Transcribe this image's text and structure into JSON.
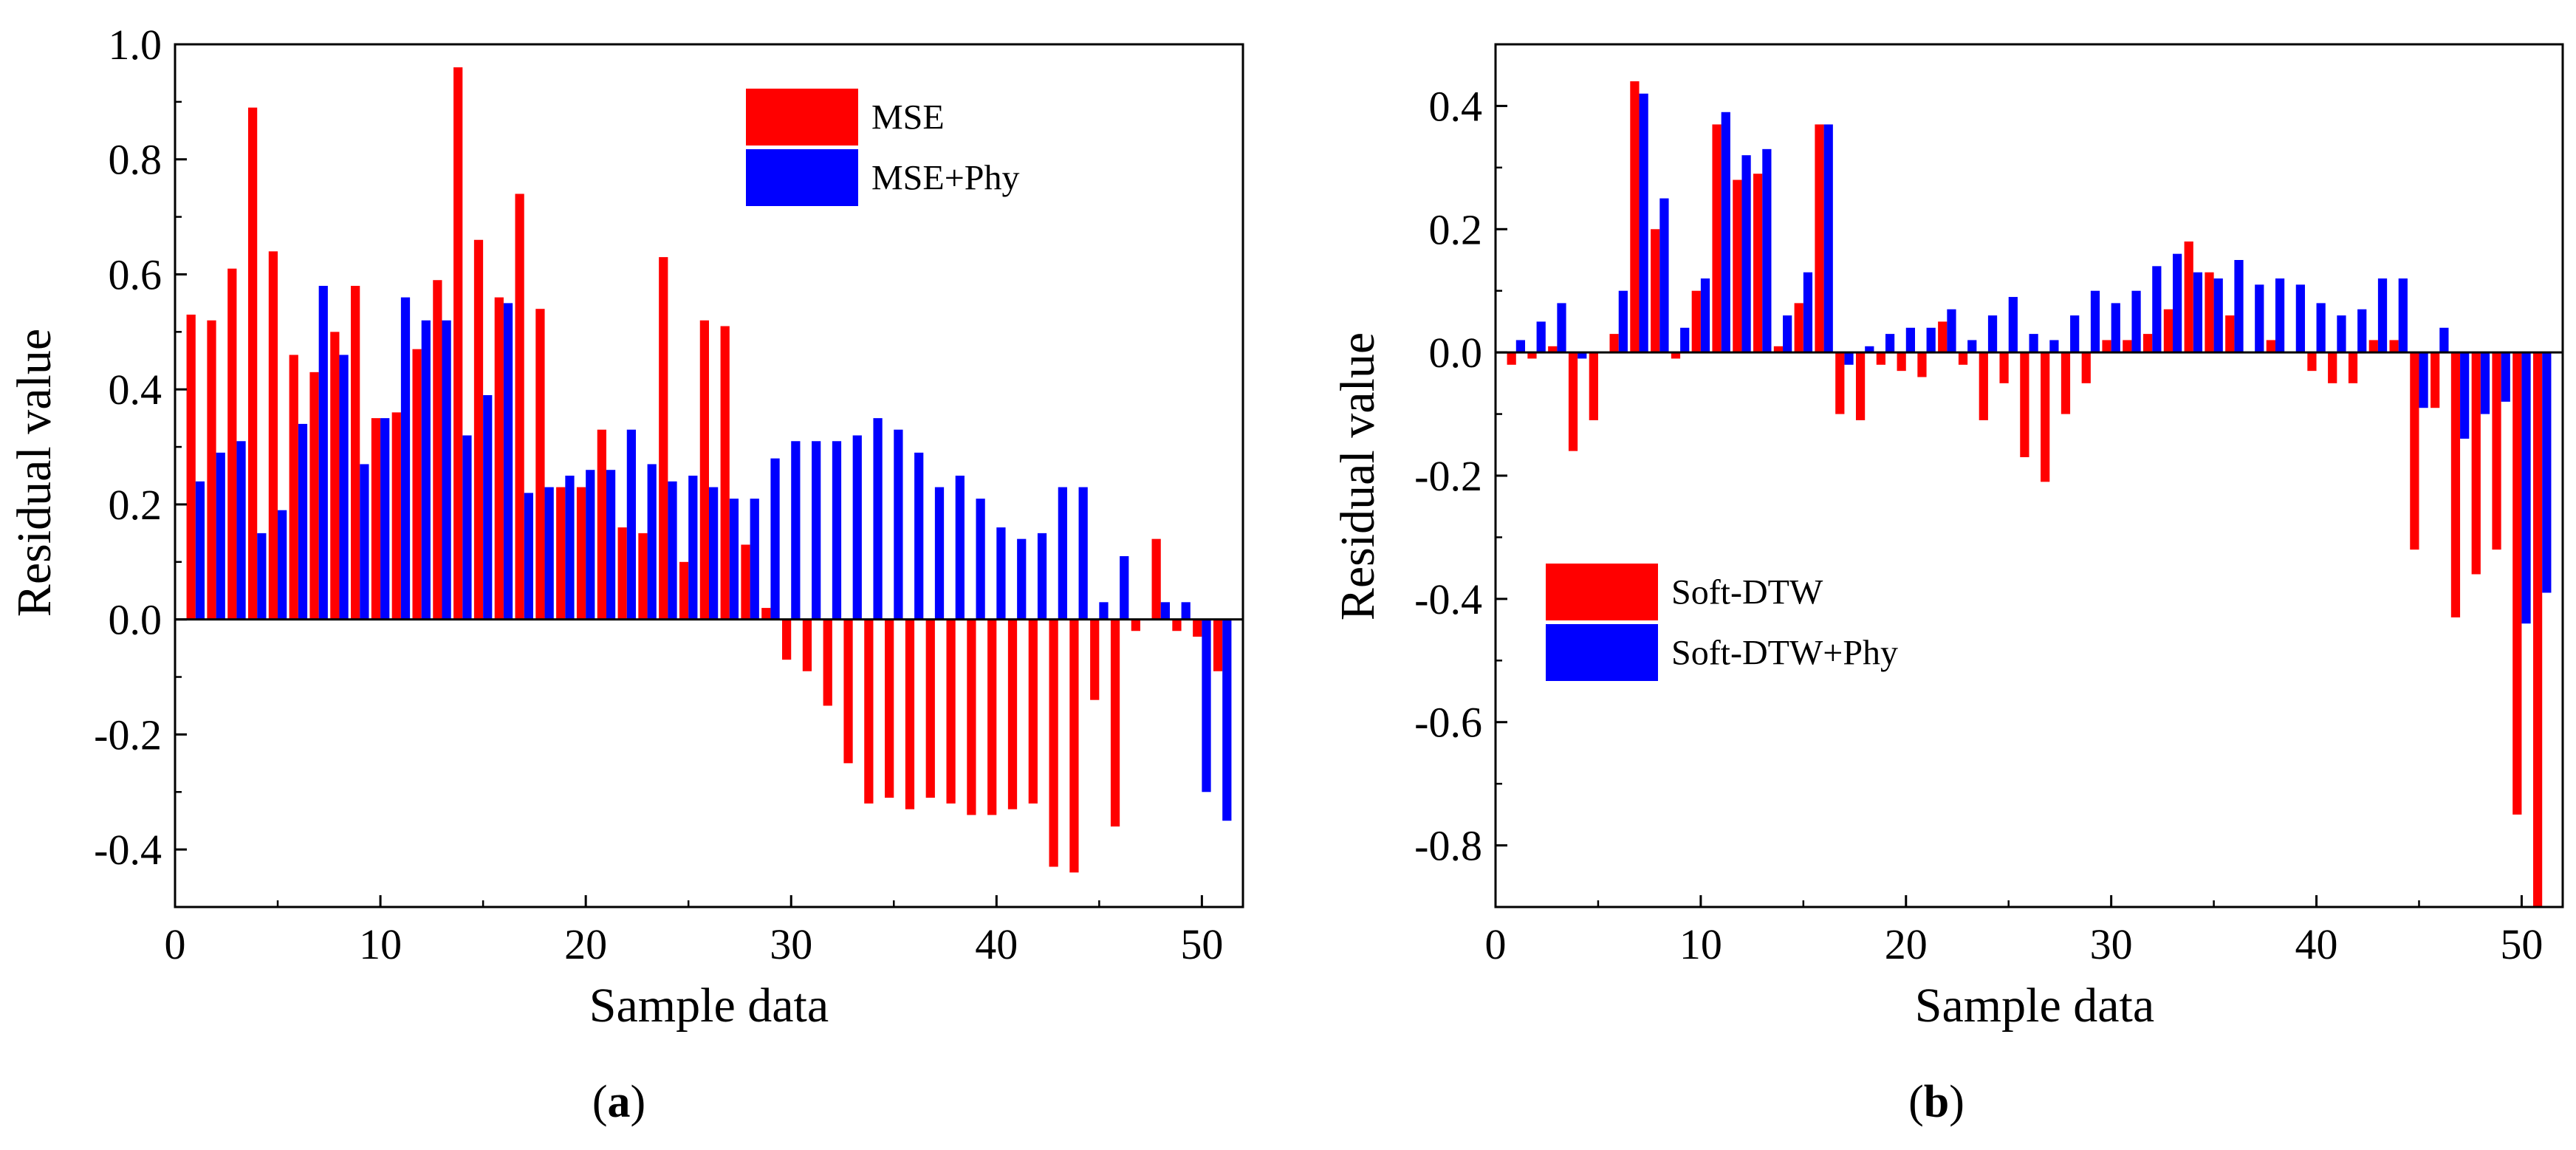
{
  "colors": {
    "series_1": "#ff0000",
    "series_2": "#0000ff",
    "axes": "#000000"
  },
  "chart_data": [
    {
      "type": "bar",
      "caption_letter": "a",
      "xlabel": "Sample data",
      "ylabel": "Residual value",
      "xlim": [
        0,
        52
      ],
      "ylim": [
        -0.5,
        1.0
      ],
      "xticks": [
        0,
        10,
        20,
        30,
        40,
        50
      ],
      "yticks": [
        -0.4,
        -0.2,
        0.0,
        0.2,
        0.4,
        0.6,
        0.8,
        1.0
      ],
      "ytick_labels": [
        "-0.4",
        "-0.2",
        "0.0",
        "0.2",
        "0.4",
        "0.6",
        "0.8",
        "1.0"
      ],
      "grid": false,
      "legend_position": "top-right",
      "x": [
        1,
        2,
        3,
        4,
        5,
        6,
        7,
        8,
        9,
        10,
        11,
        12,
        13,
        14,
        15,
        16,
        17,
        18,
        19,
        20,
        21,
        22,
        23,
        24,
        25,
        26,
        27,
        28,
        29,
        30,
        31,
        32,
        33,
        34,
        35,
        36,
        37,
        38,
        39,
        40,
        41,
        42,
        43,
        44,
        45,
        46,
        47,
        48,
        49,
        50,
        51
      ],
      "series": [
        {
          "name": "MSE",
          "values": [
            0.53,
            0.52,
            0.61,
            0.89,
            0.64,
            0.46,
            0.43,
            0.5,
            0.58,
            0.35,
            0.36,
            0.47,
            0.59,
            0.96,
            0.66,
            0.56,
            0.74,
            0.54,
            0.23,
            0.23,
            0.33,
            0.16,
            0.15,
            0.63,
            0.1,
            0.52,
            0.51,
            0.13,
            0.02,
            -0.07,
            -0.09,
            -0.15,
            -0.25,
            -0.32,
            -0.31,
            -0.33,
            -0.31,
            -0.32,
            -0.34,
            -0.34,
            -0.33,
            -0.32,
            -0.43,
            -0.44,
            -0.14,
            -0.36,
            -0.02,
            0.14,
            -0.02,
            -0.03,
            -0.09
          ]
        },
        {
          "name": "MSE+Phy",
          "values": [
            0.24,
            0.29,
            0.31,
            0.15,
            0.19,
            0.34,
            0.58,
            0.46,
            0.27,
            0.35,
            0.56,
            0.52,
            0.52,
            0.32,
            0.39,
            0.55,
            0.22,
            0.23,
            0.25,
            0.26,
            0.26,
            0.33,
            0.27,
            0.24,
            0.25,
            0.23,
            0.21,
            0.21,
            0.28,
            0.31,
            0.31,
            0.31,
            0.32,
            0.35,
            0.33,
            0.29,
            0.23,
            0.25,
            0.21,
            0.16,
            0.14,
            0.15,
            0.23,
            0.23,
            0.03,
            0.11,
            0.0,
            0.03,
            0.03,
            -0.3,
            -0.35
          ]
        }
      ]
    },
    {
      "type": "bar",
      "caption_letter": "b",
      "xlabel": "Sample data",
      "ylabel": "Residual value",
      "xlim": [
        0,
        52
      ],
      "ylim": [
        -0.9,
        0.5
      ],
      "xticks": [
        0,
        10,
        20,
        30,
        40,
        50
      ],
      "yticks": [
        -0.8,
        -0.6,
        -0.4,
        -0.2,
        0.0,
        0.2,
        0.4
      ],
      "ytick_labels": [
        "-0.8",
        "-0.6",
        "-0.4",
        "-0.2",
        "0.0",
        "0.2",
        "0.4"
      ],
      "grid": false,
      "legend_position": "center-left",
      "x": [
        1,
        2,
        3,
        4,
        5,
        6,
        7,
        8,
        9,
        10,
        11,
        12,
        13,
        14,
        15,
        16,
        17,
        18,
        19,
        20,
        21,
        22,
        23,
        24,
        25,
        26,
        27,
        28,
        29,
        30,
        31,
        32,
        33,
        34,
        35,
        36,
        37,
        38,
        39,
        40,
        41,
        42,
        43,
        44,
        45,
        46,
        47,
        48,
        49,
        50,
        51
      ],
      "series": [
        {
          "name": "Soft-DTW",
          "values": [
            -0.02,
            -0.01,
            0.01,
            -0.16,
            -0.11,
            0.03,
            0.44,
            0.2,
            -0.01,
            0.1,
            0.37,
            0.28,
            0.29,
            0.01,
            0.08,
            0.37,
            -0.1,
            -0.11,
            -0.02,
            -0.03,
            -0.04,
            0.05,
            -0.02,
            -0.11,
            -0.05,
            -0.17,
            -0.21,
            -0.1,
            -0.05,
            0.02,
            0.02,
            0.03,
            0.07,
            0.18,
            0.13,
            0.06,
            0.0,
            0.02,
            0.0,
            -0.03,
            -0.05,
            -0.05,
            0.02,
            0.02,
            -0.32,
            -0.09,
            -0.43,
            -0.36,
            -0.32,
            -0.75,
            -0.9
          ]
        },
        {
          "name": "Soft-DTW+Phy",
          "values": [
            0.02,
            0.05,
            0.08,
            -0.01,
            0.0,
            0.1,
            0.42,
            0.25,
            0.04,
            0.12,
            0.39,
            0.32,
            0.33,
            0.06,
            0.13,
            0.37,
            -0.02,
            0.01,
            0.03,
            0.04,
            0.04,
            0.07,
            0.02,
            0.06,
            0.09,
            0.03,
            0.02,
            0.06,
            0.1,
            0.08,
            0.1,
            0.14,
            0.16,
            0.13,
            0.12,
            0.15,
            0.11,
            0.12,
            0.11,
            0.08,
            0.06,
            0.07,
            0.12,
            0.12,
            -0.09,
            0.04,
            -0.14,
            -0.1,
            -0.08,
            -0.44,
            -0.39
          ]
        }
      ]
    }
  ]
}
